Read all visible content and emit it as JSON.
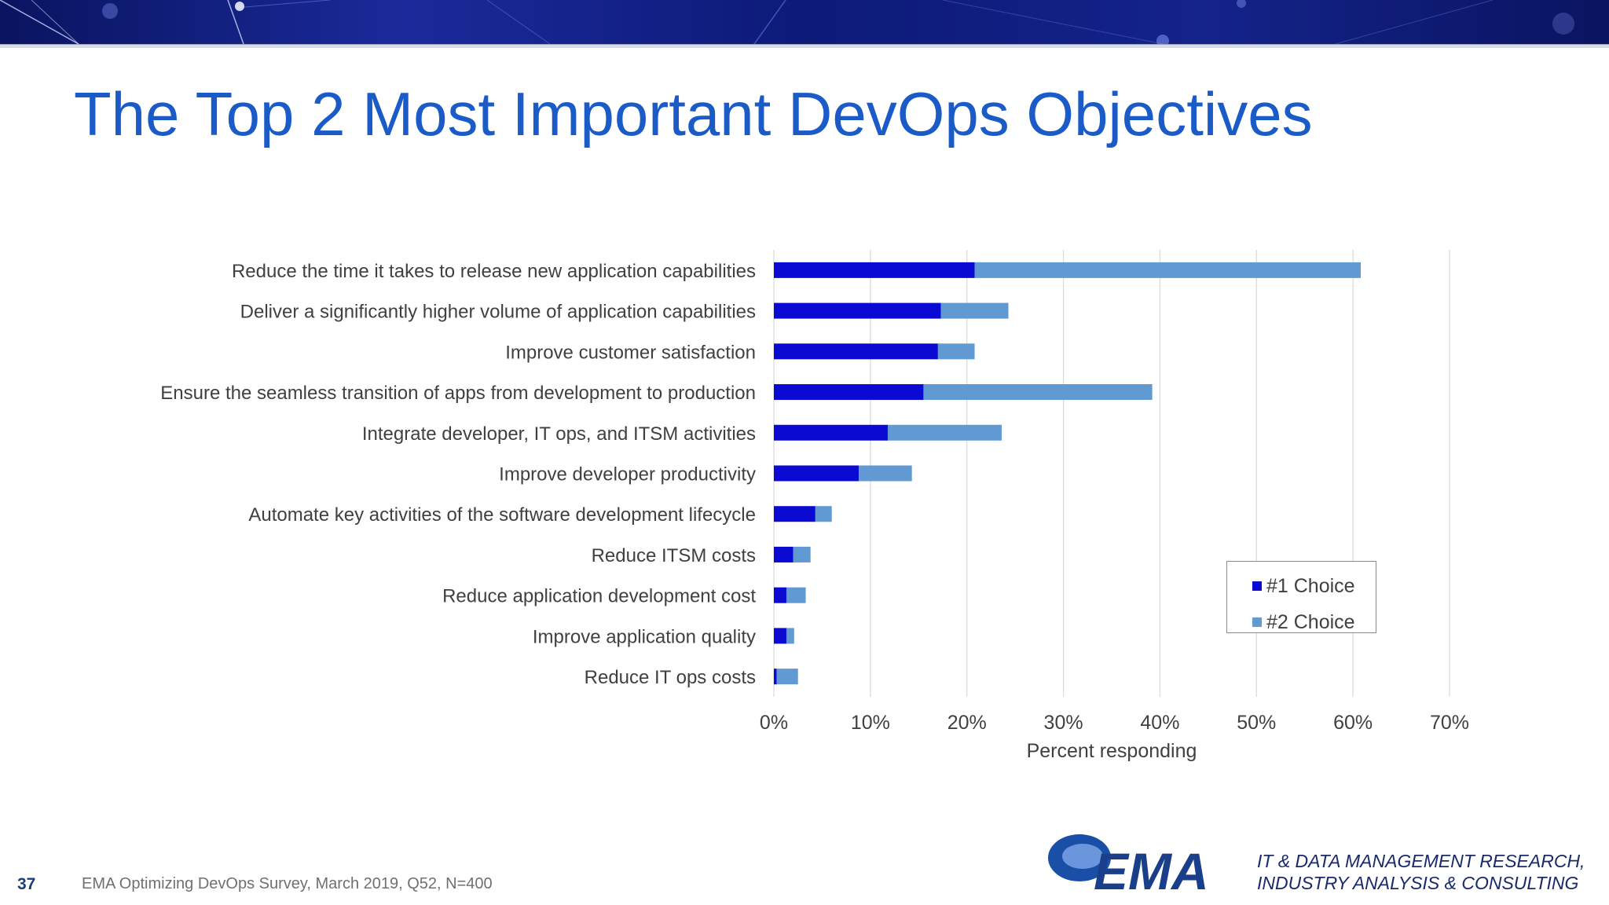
{
  "slide": {
    "title": "The Top 2 Most Important DevOps Objectives",
    "page_number": "37",
    "source": "EMA  Optimizing DevOps Survey, March 2019, Q52, N=400",
    "logo_text": "EMA",
    "tagline_line1": "IT & DATA MANAGEMENT RESEARCH,",
    "tagline_line2": "INDUSTRY ANALYSIS & CONSULTING"
  },
  "colors": {
    "title": "#1a5bc8",
    "series1": "#0a0ad2",
    "series2": "#6199d2",
    "grid": "#d9d9d9",
    "text": "#404040"
  },
  "chart_data": {
    "type": "bar",
    "orientation": "horizontal",
    "stacked": true,
    "categories": [
      "Reduce the time it takes to release new application capabilities",
      "Deliver a significantly higher volume of application capabilities",
      "Improve customer satisfaction",
      "Ensure the seamless transition of apps from development to production",
      "Integrate developer, IT ops, and ITSM activities",
      "Improve developer productivity",
      "Automate key activities of the software development lifecycle",
      "Reduce ITSM costs",
      "Reduce application development cost",
      "Improve application quality",
      "Reduce IT ops costs"
    ],
    "series": [
      {
        "name": "#1 Choice",
        "values": [
          20.8,
          17.3,
          17.0,
          15.5,
          11.8,
          8.8,
          4.3,
          2.0,
          1.3,
          1.3,
          0.3
        ]
      },
      {
        "name": "#2 Choice",
        "values": [
          40.0,
          7.0,
          3.8,
          23.7,
          11.8,
          5.5,
          1.7,
          1.8,
          2.0,
          0.8,
          2.2
        ]
      }
    ],
    "xlabel": "Percent responding",
    "xlim": [
      0,
      70
    ],
    "xticks": [
      0,
      10,
      20,
      30,
      40,
      50,
      60,
      70
    ],
    "xtick_labels": [
      "0%",
      "10%",
      "20%",
      "30%",
      "40%",
      "50%",
      "60%",
      "70%"
    ],
    "grid": "vertical",
    "legend_position": "bottom-right"
  }
}
